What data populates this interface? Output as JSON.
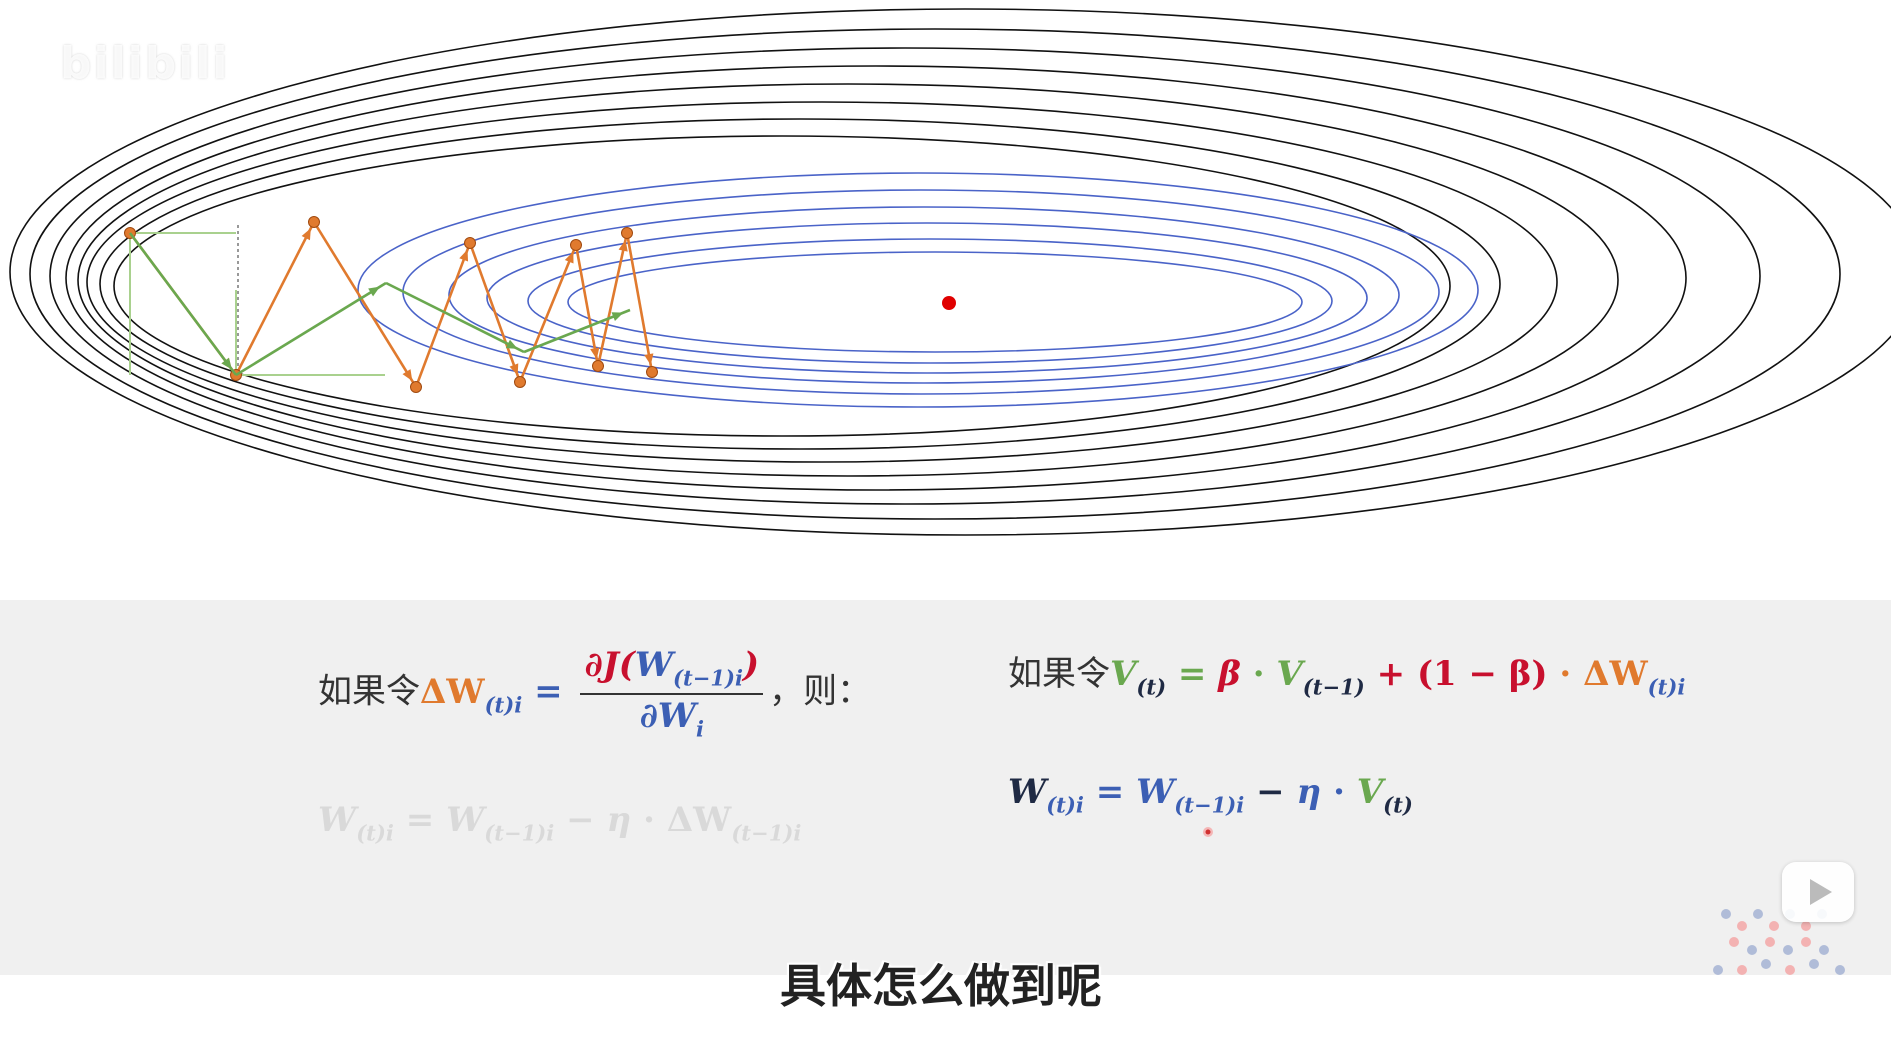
{
  "watermark": "bilibili",
  "equations": {
    "if_label": "如果令",
    "then_label": "，则：",
    "dW": "ΔW",
    "sub_t_i": "(t)i",
    "eq": "=",
    "numerator_dJ": "∂J(",
    "numerator_W": "W",
    "sub_t1_i": "(t−1)i",
    "numerator_close": ")",
    "denominator": "∂W",
    "sub_i": "i",
    "V": "V",
    "sub_t": "(t)",
    "beta": "β",
    "dot": "·",
    "sub_t1": "(t−1)",
    "plus": "+",
    "one_minus_beta": "(1 − β)",
    "W": "W",
    "minus": "−",
    "eta": "η"
  },
  "subtitle": "具体怎么做到呢",
  "colors": {
    "orange": "#e07a2e",
    "blue": "#3c5fb4",
    "red": "#c8102e",
    "green": "#6aa84f",
    "dark": "#1f2a44",
    "contour_outer": "#111111",
    "contour_inner": "#4a63c8",
    "minimum": "#e00000",
    "light_green": "#a9d18e"
  },
  "icons": [
    "play-icon",
    "logo-dots-icon"
  ]
}
